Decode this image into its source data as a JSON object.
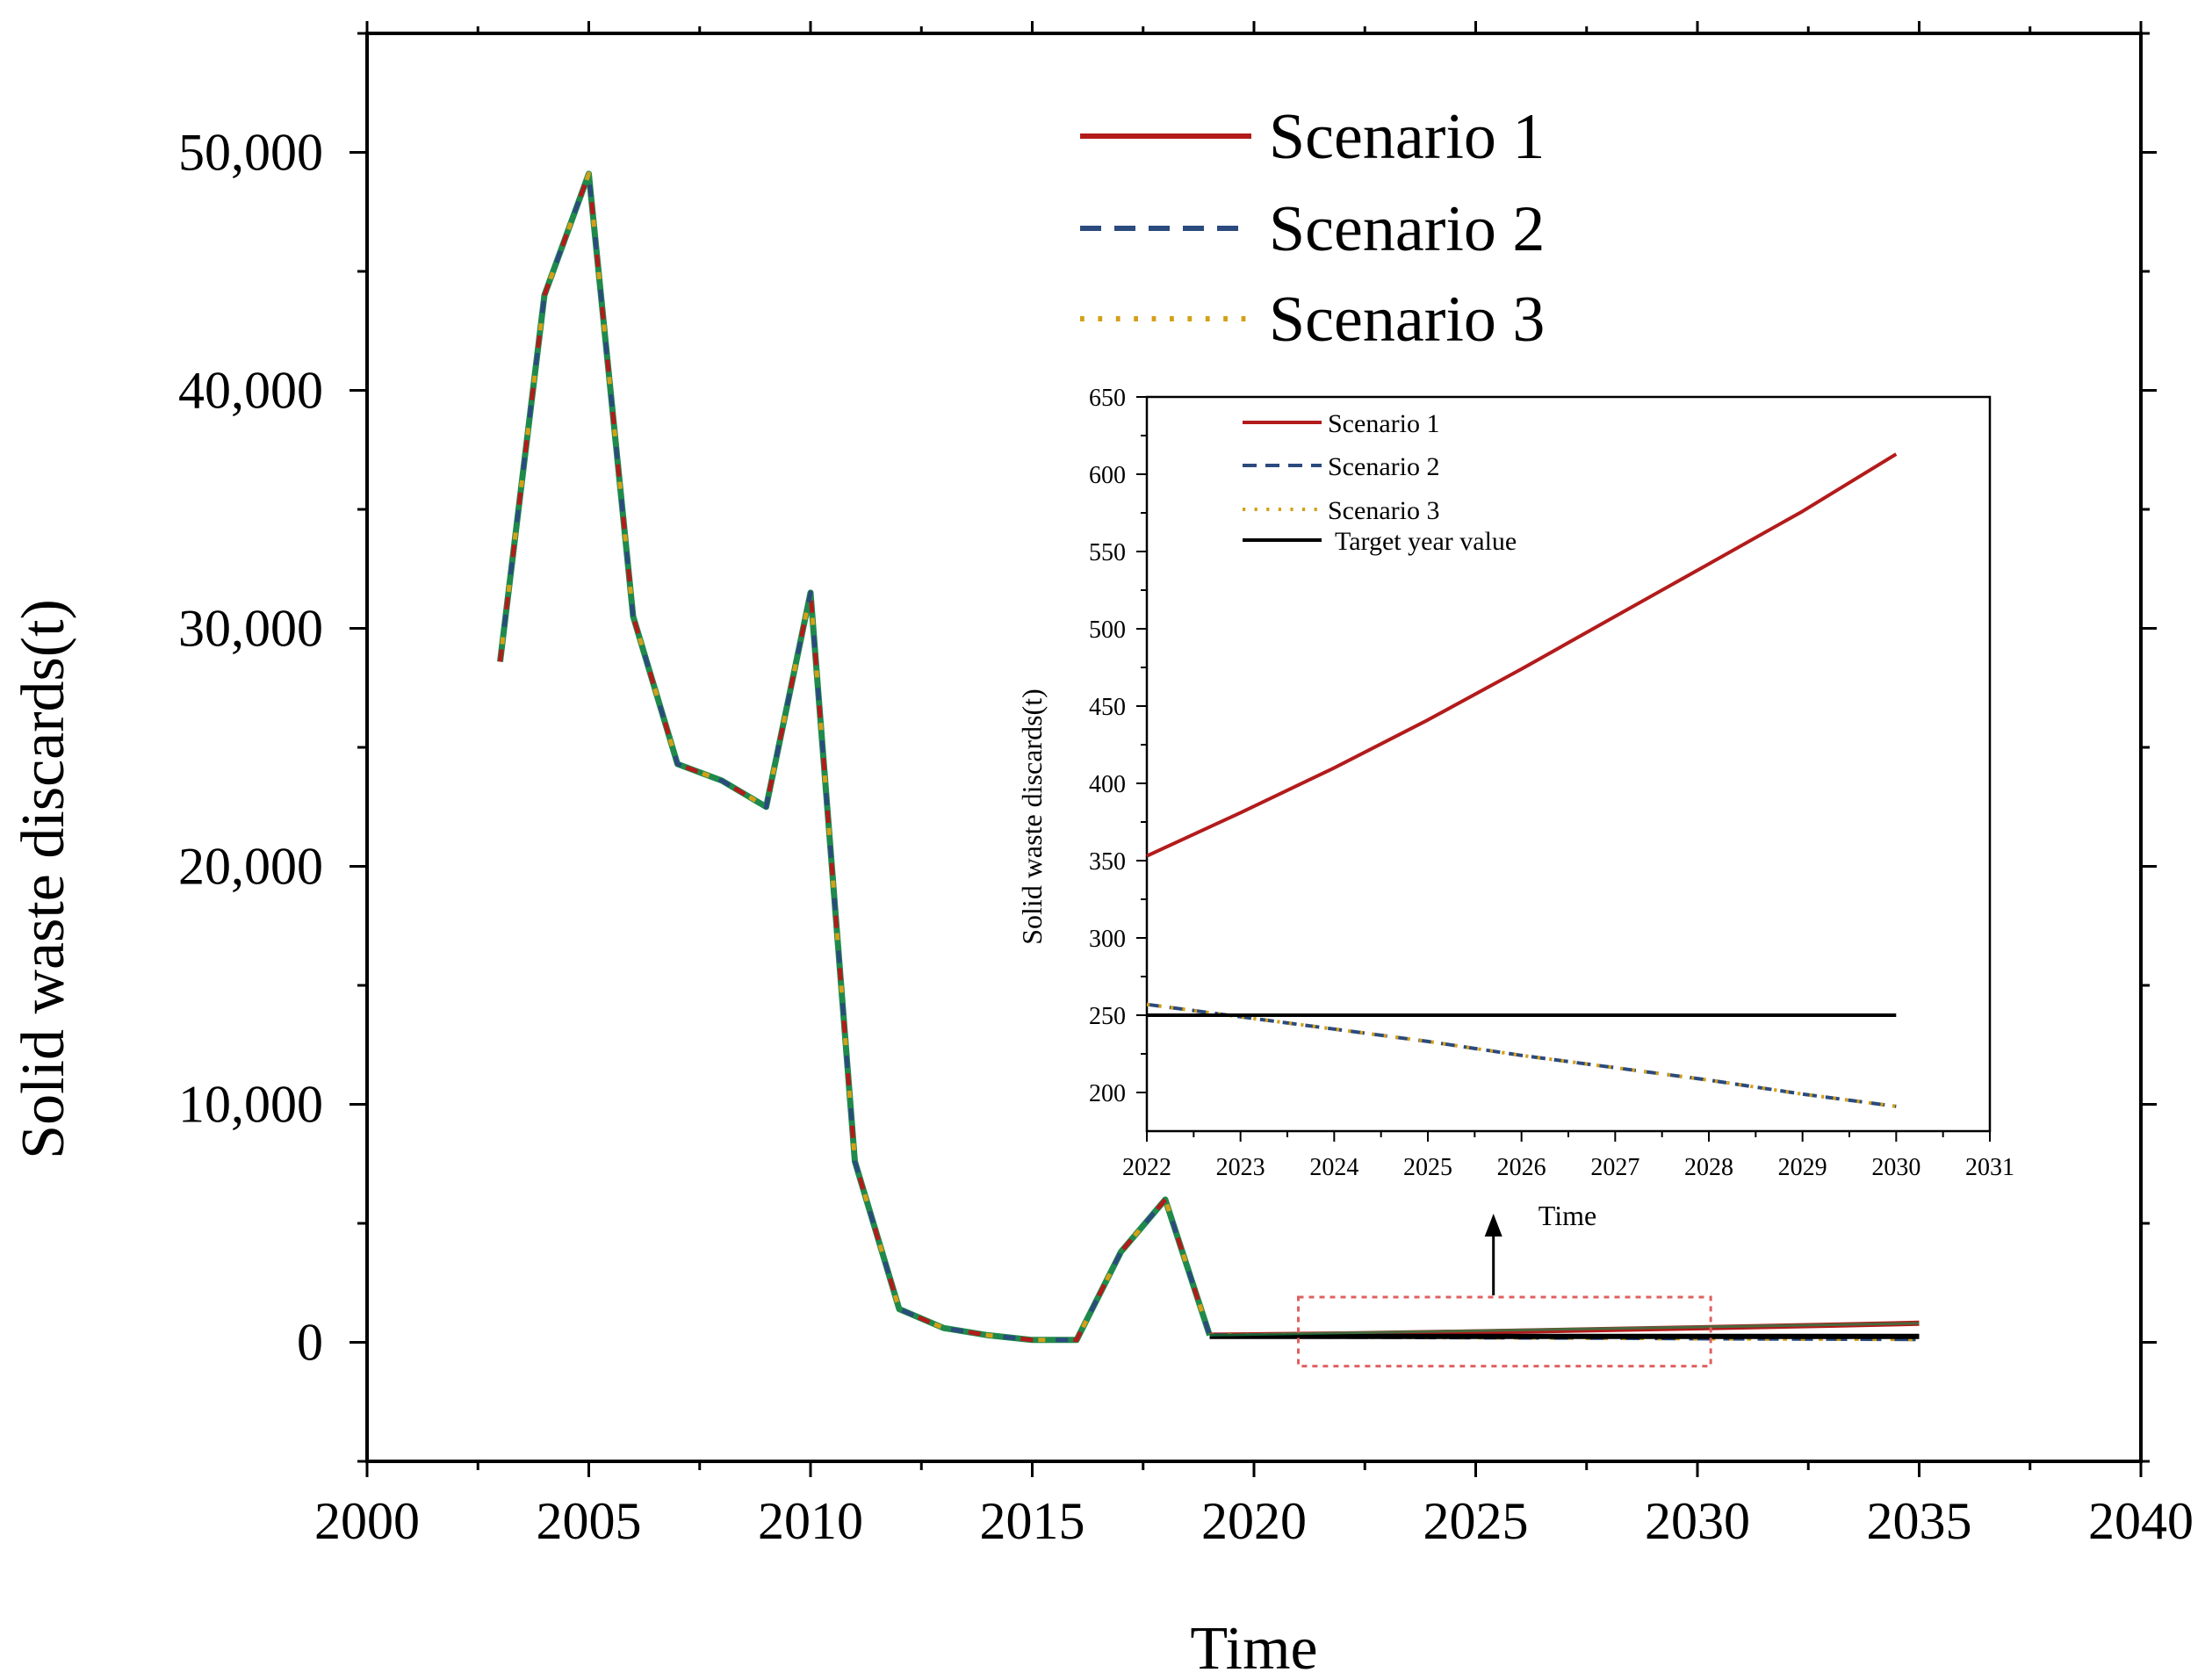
{
  "colors": {
    "scenario1": "#b31b1b",
    "scenario2": "#2b4a7d",
    "scenario3": "#d4a017",
    "overlay": "#1f8a4c",
    "target": "#000000",
    "zoom_box": "#e06060",
    "axis": "#000000"
  },
  "chart_data": [
    {
      "id": "main",
      "type": "line",
      "title": "",
      "xlabel": "Time",
      "ylabel": "Solid waste discards(t)",
      "xlim": [
        2000,
        2040
      ],
      "ylim": [
        -5000,
        55000
      ],
      "xticks": [
        2000,
        2005,
        2010,
        2015,
        2020,
        2025,
        2030,
        2035,
        2040
      ],
      "xtick_labels": [
        "2000",
        "2005",
        "2010",
        "2015",
        "2020",
        "2025",
        "2030",
        "2035",
        "2040"
      ],
      "yticks": [
        0,
        10000,
        20000,
        30000,
        40000,
        50000
      ],
      "ytick_labels": [
        "0",
        "10,000",
        "20,000",
        "30,000",
        "40,000",
        "50,000"
      ],
      "legend_position": "top-right",
      "legend": [
        "Scenario 1",
        "Scenario 2",
        "Scenario 3"
      ],
      "historical": {
        "x": [
          2003,
          2004,
          2005,
          2006,
          2007,
          2008,
          2009,
          2010,
          2011,
          2012,
          2013,
          2014,
          2015,
          2016,
          2017,
          2018,
          2019
        ],
        "y": [
          28600,
          44000,
          49100,
          30500,
          24300,
          23600,
          22500,
          31500,
          7600,
          1400,
          600,
          300,
          100,
          100,
          3800,
          6000,
          300
        ]
      },
      "series": [
        {
          "name": "Scenario 1",
          "style": "solid",
          "x": [
            2019,
            2022,
            2025,
            2028,
            2030,
            2033,
            2035
          ],
          "y": [
            300,
            350,
            440,
            540,
            610,
            720,
            800
          ]
        },
        {
          "name": "Scenario 2",
          "style": "dashed",
          "x": [
            2019,
            2022,
            2025,
            2028,
            2030,
            2033,
            2035
          ],
          "y": [
            270,
            255,
            230,
            210,
            190,
            170,
            160
          ]
        },
        {
          "name": "Scenario 3",
          "style": "dotted",
          "x": [
            2019,
            2022,
            2025,
            2028,
            2030,
            2033,
            2035
          ],
          "y": [
            270,
            255,
            230,
            210,
            190,
            170,
            160
          ]
        },
        {
          "name": "Target year value",
          "style": "solid",
          "x": [
            2019,
            2035
          ],
          "y": [
            250,
            250
          ]
        }
      ],
      "annotation": "dashed box marks 2021–2030 region shown in inset"
    },
    {
      "id": "inset",
      "type": "line",
      "title": "",
      "xlabel": "Time",
      "ylabel": "Solid waste discards(t)",
      "xlim": [
        2022,
        2031
      ],
      "ylim": [
        175,
        650
      ],
      "xticks": [
        2022,
        2023,
        2024,
        2025,
        2026,
        2027,
        2028,
        2029,
        2030,
        2031
      ],
      "xtick_labels": [
        "2022",
        "2023",
        "2024",
        "2025",
        "2026",
        "2027",
        "2028",
        "2029",
        "2030",
        "2031"
      ],
      "yticks": [
        200,
        250,
        300,
        350,
        400,
        450,
        500,
        550,
        600,
        650
      ],
      "ytick_labels": [
        "200",
        "250",
        "300",
        "350",
        "400",
        "450",
        "500",
        "550",
        "600",
        "650"
      ],
      "legend_position": "top-left",
      "legend": [
        "Scenario 1",
        "Scenario 2",
        "Scenario 3",
        "Target year value"
      ],
      "series": [
        {
          "name": "Scenario 1",
          "style": "solid",
          "x": [
            2022,
            2023,
            2024,
            2025,
            2026,
            2027,
            2028,
            2029,
            2030
          ],
          "y": [
            353,
            381,
            410,
            441,
            474,
            508,
            542,
            576,
            613
          ]
        },
        {
          "name": "Scenario 2",
          "style": "dashed",
          "x": [
            2022,
            2023,
            2024,
            2025,
            2026,
            2027,
            2028,
            2029,
            2030
          ],
          "y": [
            257,
            249,
            241,
            233,
            224,
            216,
            208,
            199,
            191
          ]
        },
        {
          "name": "Scenario 3",
          "style": "dotted",
          "x": [
            2022,
            2023,
            2024,
            2025,
            2026,
            2027,
            2028,
            2029,
            2030
          ],
          "y": [
            257,
            249,
            241,
            233,
            224,
            216,
            208,
            199,
            191
          ]
        },
        {
          "name": "Target year value",
          "style": "solid",
          "x": [
            2022,
            2030
          ],
          "y": [
            250,
            250
          ]
        }
      ]
    }
  ]
}
